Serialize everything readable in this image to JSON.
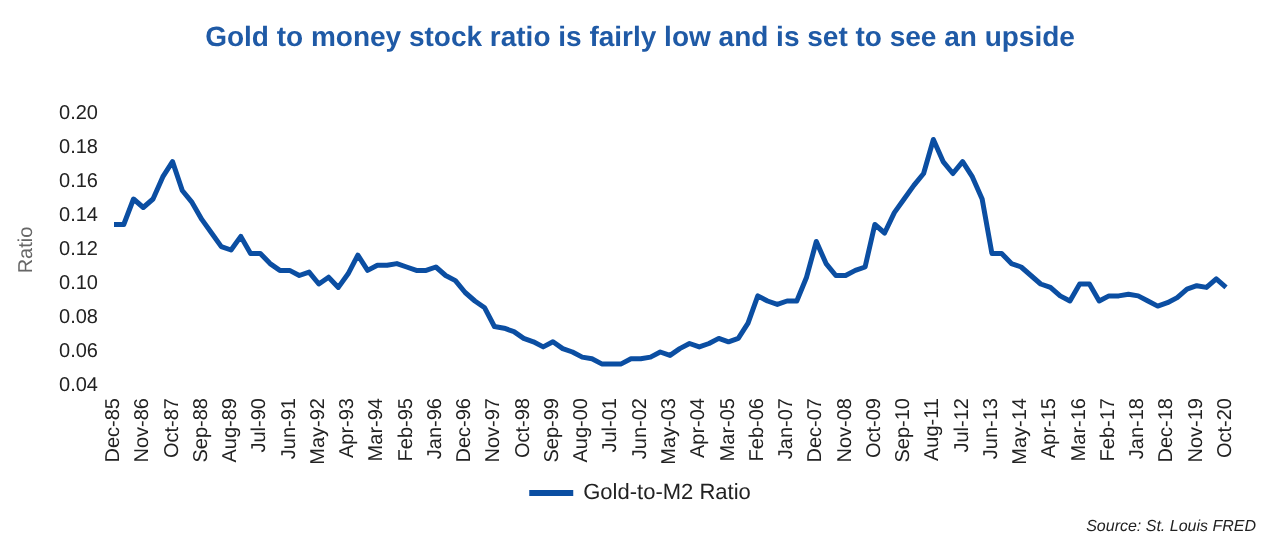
{
  "chart_data": {
    "type": "line",
    "title": "Gold to money stock ratio is fairly low and is set to see an upside",
    "ylabel": "Ratio",
    "annotations": [
      "Source: St. Louis FRED"
    ],
    "categories": [
      "Dec-85",
      null,
      null,
      "Nov-86",
      null,
      null,
      "Oct-87",
      null,
      null,
      "Sep-88",
      null,
      null,
      "Aug-89",
      null,
      null,
      "Jul-90",
      null,
      null,
      "Jun-91",
      null,
      null,
      "May-92",
      null,
      null,
      "Apr-93",
      null,
      null,
      "Mar-94",
      null,
      null,
      "Feb-95",
      null,
      null,
      "Jan-96",
      null,
      null,
      "Dec-96",
      null,
      null,
      "Nov-97",
      null,
      null,
      "Oct-98",
      null,
      null,
      "Sep-99",
      null,
      null,
      "Aug-00",
      null,
      null,
      "Jul-01",
      null,
      null,
      "Jun-02",
      null,
      null,
      "May-03",
      null,
      null,
      "Apr-04",
      null,
      null,
      "Mar-05",
      null,
      null,
      "Feb-06",
      null,
      null,
      "Jan-07",
      null,
      null,
      "Dec-07",
      null,
      null,
      "Nov-08",
      null,
      null,
      "Oct-09",
      null,
      null,
      "Sep-10",
      null,
      null,
      "Aug-11",
      null,
      null,
      "Jul-12",
      null,
      null,
      "Jun-13",
      null,
      null,
      "May-14",
      null,
      null,
      "Apr-15",
      null,
      null,
      "Mar-16",
      null,
      null,
      "Feb-17",
      null,
      null,
      "Jan-18",
      null,
      null,
      "Dec-18",
      null,
      null,
      "Nov-19",
      null,
      null,
      "Oct-20"
    ],
    "series": [
      {
        "name": "Gold-to-M2 Ratio",
        "color": "#0b4ea2",
        "values": [
          0.135,
          0.135,
          0.15,
          0.145,
          0.15,
          0.163,
          0.172,
          0.155,
          0.148,
          0.138,
          0.13,
          0.122,
          0.12,
          0.128,
          0.118,
          0.118,
          0.112,
          0.108,
          0.108,
          0.105,
          0.107,
          0.1,
          0.104,
          0.098,
          0.106,
          0.117,
          0.108,
          0.111,
          0.111,
          0.112,
          0.11,
          0.108,
          0.108,
          0.11,
          0.105,
          0.102,
          0.095,
          0.09,
          0.086,
          0.075,
          0.074,
          0.072,
          0.068,
          0.066,
          0.063,
          0.066,
          0.062,
          0.06,
          0.057,
          0.056,
          0.053,
          0.053,
          0.053,
          0.056,
          0.056,
          0.057,
          0.06,
          0.058,
          0.062,
          0.065,
          0.063,
          0.065,
          0.068,
          0.066,
          0.068,
          0.077,
          0.093,
          0.09,
          0.088,
          0.09,
          0.09,
          0.104,
          0.125,
          0.112,
          0.105,
          0.105,
          0.108,
          0.11,
          0.135,
          0.13,
          0.142,
          0.15,
          0.158,
          0.165,
          0.185,
          0.172,
          0.165,
          0.172,
          0.163,
          0.15,
          0.118,
          0.118,
          0.112,
          0.11,
          0.105,
          0.1,
          0.098,
          0.093,
          0.09,
          0.1,
          0.1,
          0.09,
          0.093,
          0.093,
          0.094,
          0.093,
          0.09,
          0.087,
          0.089,
          0.092,
          0.097,
          0.099,
          0.098,
          0.103,
          0.098
        ]
      }
    ],
    "ylim": [
      0.04,
      0.2
    ],
    "yticks": [
      {
        "value": 0.04,
        "label": "0.04"
      },
      {
        "value": 0.06,
        "label": "0.06"
      },
      {
        "value": 0.08,
        "label": "0.08"
      },
      {
        "value": 0.1,
        "label": "0.10"
      },
      {
        "value": 0.12,
        "label": "0.12"
      },
      {
        "value": 0.14,
        "label": "0.14"
      },
      {
        "value": 0.16,
        "label": "0.16"
      },
      {
        "value": 0.18,
        "label": "0.18"
      },
      {
        "value": 0.2,
        "label": "0.20"
      }
    ],
    "grid": false,
    "legend": "bottom",
    "marker": "none",
    "line_style": "solid"
  }
}
